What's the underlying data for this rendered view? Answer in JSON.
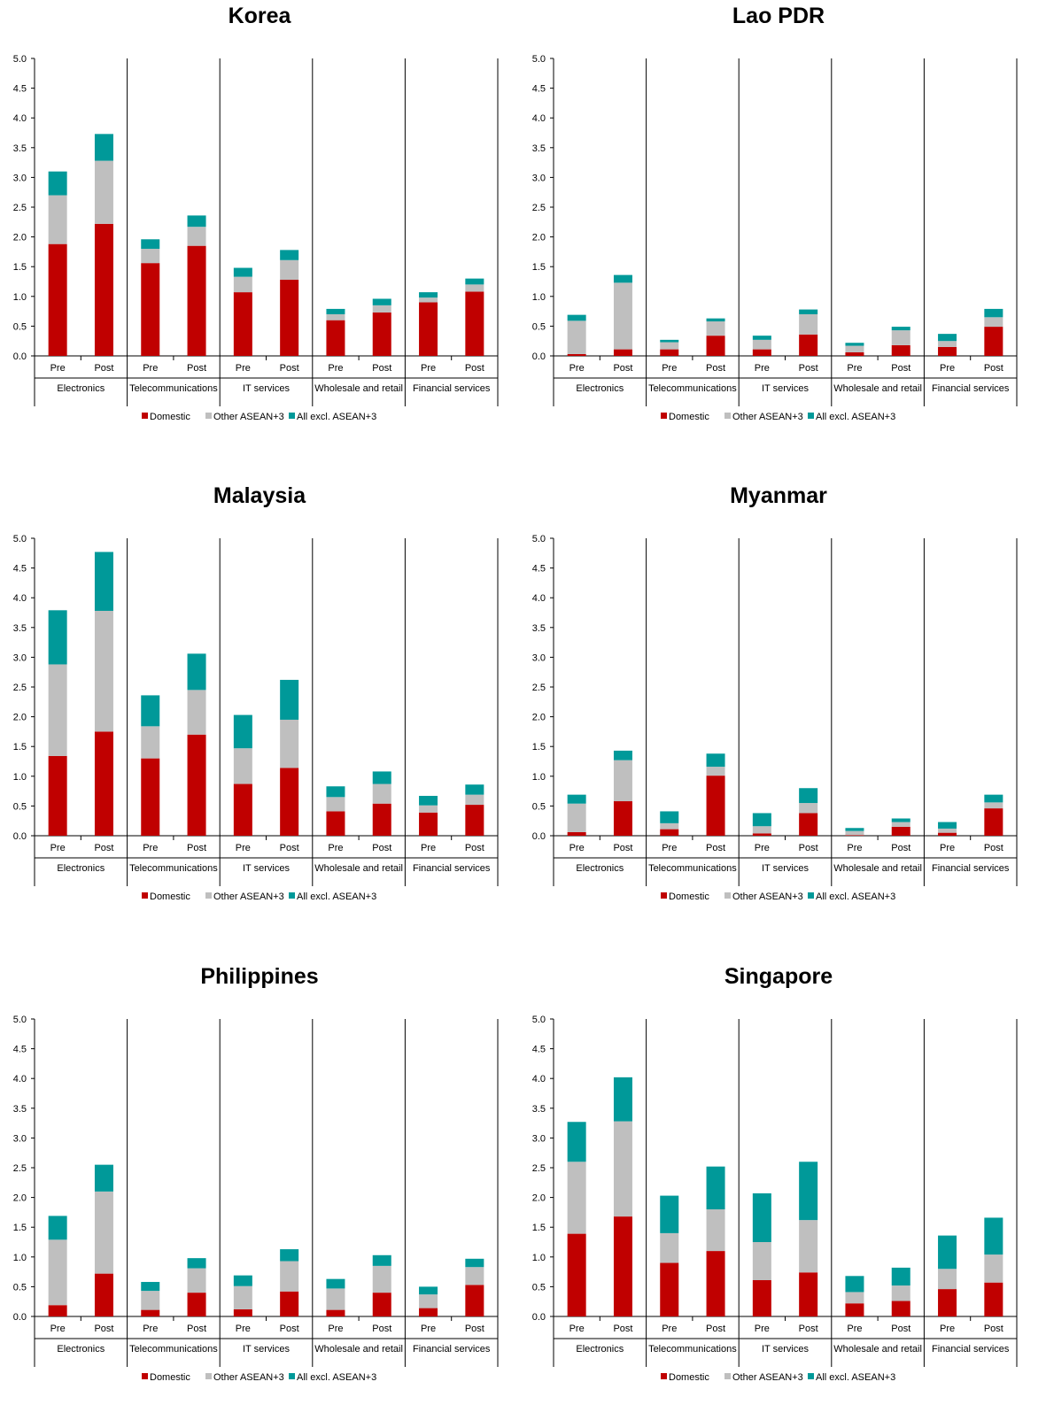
{
  "colors": {
    "domestic": "#C00000",
    "other_asean3": "#BFBFBF",
    "all_excl_asean3": "#009999"
  },
  "chart_data": [
    {
      "type": "bar",
      "stacked": true,
      "title": "Korea",
      "groups": [
        "Electronics",
        "Telecommunications",
        "IT services",
        "Wholesale and retail",
        "Financial services"
      ],
      "subcategories": [
        "Pre",
        "Post"
      ],
      "ylim": [
        0,
        5.0
      ],
      "yticks": [
        "0.0",
        "0.5",
        "1.0",
        "1.5",
        "2.0",
        "2.5",
        "3.0",
        "3.5",
        "4.0",
        "4.5",
        "5.0"
      ],
      "legend_position": "bottom",
      "series": [
        {
          "name": "Domestic",
          "values": [
            1.88,
            2.22,
            1.56,
            1.85,
            1.07,
            1.28,
            0.6,
            0.73,
            0.9,
            1.08
          ]
        },
        {
          "name": "Other ASEAN+3",
          "values": [
            0.82,
            1.06,
            0.24,
            0.32,
            0.26,
            0.33,
            0.1,
            0.12,
            0.08,
            0.12
          ]
        },
        {
          "name": "All excl. ASEAN+3",
          "values": [
            0.4,
            0.45,
            0.16,
            0.19,
            0.15,
            0.17,
            0.09,
            0.11,
            0.09,
            0.1
          ]
        }
      ]
    },
    {
      "type": "bar",
      "stacked": true,
      "title": "Lao PDR",
      "groups": [
        "Electronics",
        "Telecommunications",
        "IT services",
        "Wholesale and retail",
        "Financial services"
      ],
      "subcategories": [
        "Pre",
        "Post"
      ],
      "ylim": [
        0,
        5.0
      ],
      "yticks": [
        "0.0",
        "0.5",
        "1.0",
        "1.5",
        "2.0",
        "2.5",
        "3.0",
        "3.5",
        "4.0",
        "4.5",
        "5.0"
      ],
      "legend_position": "bottom",
      "series": [
        {
          "name": "Domestic",
          "values": [
            0.03,
            0.11,
            0.11,
            0.34,
            0.11,
            0.36,
            0.06,
            0.18,
            0.15,
            0.49
          ]
        },
        {
          "name": "Other ASEAN+3",
          "values": [
            0.56,
            1.12,
            0.12,
            0.24,
            0.16,
            0.34,
            0.11,
            0.25,
            0.1,
            0.16
          ]
        },
        {
          "name": "All excl. ASEAN+3",
          "values": [
            0.1,
            0.13,
            0.04,
            0.05,
            0.07,
            0.08,
            0.05,
            0.06,
            0.12,
            0.14
          ]
        }
      ]
    },
    {
      "type": "bar",
      "stacked": true,
      "title": "Malaysia",
      "groups": [
        "Electronics",
        "Telecommunications",
        "IT services",
        "Wholesale and retail",
        "Financial services"
      ],
      "subcategories": [
        "Pre",
        "Post"
      ],
      "ylim": [
        0,
        5.0
      ],
      "yticks": [
        "0.0",
        "0.5",
        "1.0",
        "1.5",
        "2.0",
        "2.5",
        "3.0",
        "3.5",
        "4.0",
        "4.5",
        "5.0"
      ],
      "legend_position": "bottom",
      "series": [
        {
          "name": "Domestic",
          "values": [
            1.34,
            1.75,
            1.3,
            1.7,
            0.87,
            1.14,
            0.41,
            0.54,
            0.39,
            0.52
          ]
        },
        {
          "name": "Other ASEAN+3",
          "values": [
            1.54,
            2.03,
            0.54,
            0.75,
            0.6,
            0.81,
            0.24,
            0.33,
            0.12,
            0.17
          ]
        },
        {
          "name": "All excl. ASEAN+3",
          "values": [
            0.91,
            0.99,
            0.52,
            0.61,
            0.56,
            0.67,
            0.18,
            0.21,
            0.16,
            0.17
          ]
        }
      ]
    },
    {
      "type": "bar",
      "stacked": true,
      "title": "Myanmar",
      "groups": [
        "Electronics",
        "Telecommunications",
        "IT services",
        "Wholesale and retail",
        "Financial services"
      ],
      "subcategories": [
        "Pre",
        "Post"
      ],
      "ylim": [
        0,
        5.0
      ],
      "yticks": [
        "0.0",
        "0.5",
        "1.0",
        "1.5",
        "2.0",
        "2.5",
        "3.0",
        "3.5",
        "4.0",
        "4.5",
        "5.0"
      ],
      "legend_position": "bottom",
      "series": [
        {
          "name": "Domestic",
          "values": [
            0.06,
            0.58,
            0.11,
            1.01,
            0.04,
            0.38,
            0.01,
            0.15,
            0.05,
            0.46
          ]
        },
        {
          "name": "Other ASEAN+3",
          "values": [
            0.48,
            0.69,
            0.1,
            0.15,
            0.12,
            0.17,
            0.07,
            0.08,
            0.07,
            0.1
          ]
        },
        {
          "name": "All excl. ASEAN+3",
          "values": [
            0.15,
            0.16,
            0.2,
            0.22,
            0.22,
            0.25,
            0.05,
            0.06,
            0.11,
            0.13
          ]
        }
      ]
    },
    {
      "type": "bar",
      "stacked": true,
      "title": "Philippines",
      "groups": [
        "Electronics",
        "Telecommunications",
        "IT services",
        "Wholesale and retail",
        "Financial services"
      ],
      "subcategories": [
        "Pre",
        "Post"
      ],
      "ylim": [
        0,
        5.0
      ],
      "yticks": [
        "0.0",
        "0.5",
        "1.0",
        "1.5",
        "2.0",
        "2.5",
        "3.0",
        "3.5",
        "4.0",
        "4.5",
        "5.0"
      ],
      "legend_position": "bottom",
      "series": [
        {
          "name": "Domestic",
          "values": [
            0.19,
            0.72,
            0.11,
            0.4,
            0.12,
            0.42,
            0.11,
            0.4,
            0.14,
            0.53
          ]
        },
        {
          "name": "Other ASEAN+3",
          "values": [
            1.1,
            1.38,
            0.32,
            0.41,
            0.39,
            0.51,
            0.36,
            0.45,
            0.23,
            0.3
          ]
        },
        {
          "name": "All excl. ASEAN+3",
          "values": [
            0.4,
            0.45,
            0.15,
            0.17,
            0.18,
            0.2,
            0.16,
            0.18,
            0.13,
            0.14
          ]
        }
      ]
    },
    {
      "type": "bar",
      "stacked": true,
      "title": "Singapore",
      "groups": [
        "Electronics",
        "Telecommunications",
        "IT services",
        "Wholesale and retail",
        "Financial services"
      ],
      "subcategories": [
        "Pre",
        "Post"
      ],
      "ylim": [
        0,
        5.0
      ],
      "yticks": [
        "0.0",
        "0.5",
        "1.0",
        "1.5",
        "2.0",
        "2.5",
        "3.0",
        "3.5",
        "4.0",
        "4.5",
        "5.0"
      ],
      "legend_position": "bottom",
      "series": [
        {
          "name": "Domestic",
          "values": [
            1.39,
            1.68,
            0.9,
            1.1,
            0.61,
            0.74,
            0.22,
            0.26,
            0.46,
            0.57
          ]
        },
        {
          "name": "Other ASEAN+3",
          "values": [
            1.21,
            1.6,
            0.5,
            0.7,
            0.64,
            0.88,
            0.19,
            0.26,
            0.34,
            0.47
          ]
        },
        {
          "name": "All excl. ASEAN+3",
          "values": [
            0.67,
            0.74,
            0.63,
            0.72,
            0.82,
            0.98,
            0.27,
            0.3,
            0.56,
            0.62
          ]
        }
      ]
    }
  ]
}
